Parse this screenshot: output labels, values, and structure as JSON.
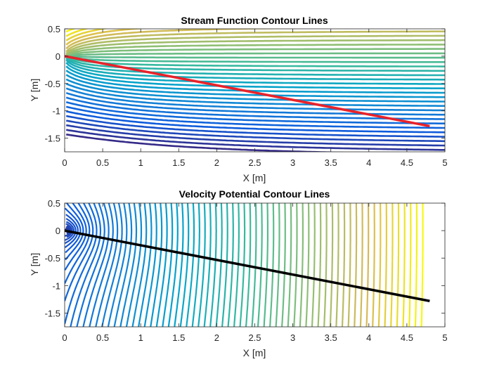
{
  "chart_data": [
    {
      "type": "contour",
      "title": "Stream Function Contour Lines",
      "xlabel": "X [m]",
      "ylabel": "Y [m]",
      "xlim": [
        0,
        5
      ],
      "ylim": [
        -1.75,
        0.5
      ],
      "xticks": [
        "0",
        "0.5",
        "1",
        "1.5",
        "2",
        "2.5",
        "3",
        "3.5",
        "4",
        "4.5",
        "5"
      ],
      "yticks": [
        "0.5",
        "0",
        "-0.5",
        "-1",
        "-1.5"
      ],
      "colormap": "parula",
      "grid": false,
      "line": {
        "color": "#e8222a",
        "x": [
          0,
          4.8
        ],
        "y": [
          0,
          -1.28
        ]
      }
    },
    {
      "type": "contour",
      "title": "Velocity Potential Contour Lines",
      "xlabel": "X [m]",
      "ylabel": "Y [m]",
      "xlim": [
        0,
        5
      ],
      "ylim": [
        -1.75,
        0.5
      ],
      "xticks": [
        "0",
        "0.5",
        "1",
        "1.5",
        "2",
        "2.5",
        "3",
        "3.5",
        "4",
        "4.5",
        "5"
      ],
      "yticks": [
        "0.5",
        "0",
        "-0.5",
        "-1",
        "-1.5"
      ],
      "colormap": "parula",
      "grid": false,
      "line": {
        "color": "#000000",
        "x": [
          0,
          4.8
        ],
        "y": [
          0,
          -1.28
        ]
      }
    }
  ]
}
